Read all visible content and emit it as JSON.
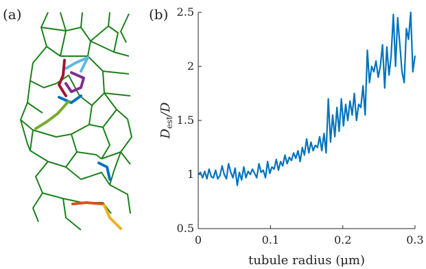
{
  "panels": {
    "a_label": "(a)",
    "b_label": "(b)"
  },
  "colors": {
    "network": "#1a7f1a",
    "series": "#0072bd",
    "trajectories": [
      "#5fb8e0",
      "#a2142f",
      "#7e2f8e",
      "#0072bd",
      "#77ac30",
      "#0072bd",
      "#d95319",
      "#edb120"
    ]
  },
  "chart_data": {
    "type": "line",
    "xlabel": "tubule radius (μm)",
    "ylabel_main": "D",
    "ylabel_sub": "est",
    "ylabel_tail": "/D",
    "xlim": [
      0,
      0.3
    ],
    "ylim": [
      0.5,
      2.5
    ],
    "xticks": [
      0,
      0.1,
      0.2,
      0.3
    ],
    "xtick_labels": [
      "0",
      "0.1",
      "0.2",
      "0.3"
    ],
    "yticks": [
      0.5,
      1,
      1.5,
      2,
      2.5
    ],
    "ytick_labels": [
      "0.5",
      "1",
      "1.5",
      "2",
      "2.5"
    ],
    "grid": false,
    "series": [
      {
        "x": [
          0.0,
          0.003,
          0.006,
          0.009,
          0.012,
          0.015,
          0.018,
          0.021,
          0.024,
          0.027,
          0.03,
          0.033,
          0.036,
          0.039,
          0.042,
          0.045,
          0.048,
          0.051,
          0.054,
          0.057,
          0.06,
          0.063,
          0.066,
          0.069,
          0.072,
          0.075,
          0.078,
          0.081,
          0.084,
          0.087,
          0.09,
          0.093,
          0.096,
          0.099,
          0.102,
          0.105,
          0.108,
          0.111,
          0.114,
          0.117,
          0.12,
          0.123,
          0.126,
          0.129,
          0.132,
          0.135,
          0.138,
          0.141,
          0.144,
          0.147,
          0.15,
          0.153,
          0.156,
          0.159,
          0.162,
          0.165,
          0.168,
          0.171,
          0.174,
          0.177,
          0.18,
          0.183,
          0.186,
          0.189,
          0.192,
          0.195,
          0.198,
          0.201,
          0.204,
          0.207,
          0.21,
          0.213,
          0.216,
          0.219,
          0.222,
          0.225,
          0.228,
          0.231,
          0.234,
          0.237,
          0.24,
          0.243,
          0.246,
          0.249,
          0.252,
          0.255,
          0.258,
          0.261,
          0.264,
          0.267,
          0.27,
          0.273,
          0.276,
          0.279,
          0.282,
          0.285,
          0.288,
          0.291,
          0.294,
          0.297,
          0.3
        ],
        "y": [
          1.0,
          1.02,
          0.97,
          1.03,
          0.96,
          1.05,
          0.98,
          0.97,
          1.04,
          0.96,
          0.99,
          1.08,
          1.0,
          0.96,
          1.1,
          1.02,
          0.97,
          1.06,
          0.9,
          1.02,
          0.95,
          1.07,
          0.97,
          1.03,
          1.0,
          1.05,
          1.01,
          0.97,
          1.1,
          1.02,
          1.04,
          0.97,
          1.12,
          1.01,
          1.07,
          1.05,
          1.14,
          1.04,
          1.12,
          1.08,
          1.18,
          1.1,
          1.16,
          1.13,
          1.2,
          1.15,
          1.22,
          1.12,
          1.25,
          1.18,
          1.33,
          1.2,
          1.3,
          1.22,
          1.27,
          1.25,
          1.35,
          1.22,
          1.38,
          1.2,
          1.7,
          1.3,
          1.55,
          1.35,
          1.62,
          1.4,
          1.7,
          1.45,
          1.65,
          1.5,
          1.68,
          1.55,
          1.75,
          1.5,
          1.65,
          1.62,
          1.82,
          1.55,
          2.15,
          1.85,
          2.0,
          1.95,
          2.05,
          1.9,
          2.0,
          2.2,
          1.8,
          2.18,
          1.92,
          2.1,
          2.48,
          2.0,
          2.45,
          2.2,
          1.95,
          1.85,
          2.35,
          2.25,
          2.5,
          1.95,
          2.1
        ]
      }
    ]
  }
}
